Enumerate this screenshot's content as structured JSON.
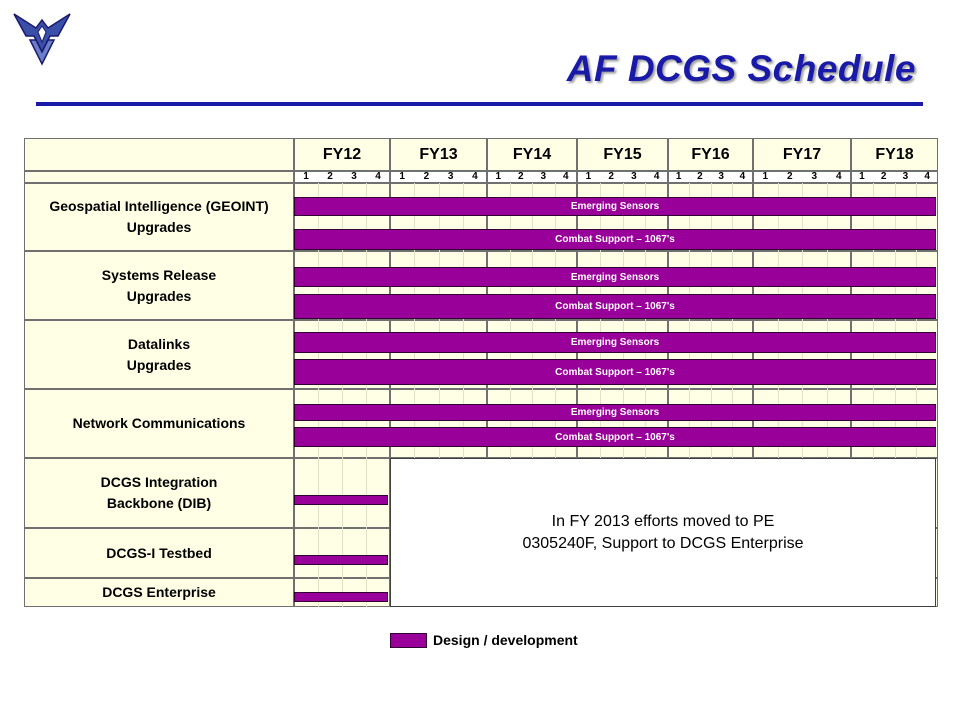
{
  "title": "AF DCGS Schedule",
  "colors": {
    "title": "#1a1aa8",
    "bar": "#990099",
    "cell_bg": "#ffffe6"
  },
  "logo": "air-force-wings-icon",
  "chart_data": {
    "type": "gantt",
    "fiscal_years": [
      "FY12",
      "FY13",
      "FY14",
      "FY15",
      "FY16",
      "FY17",
      "FY18"
    ],
    "quarters": [
      "1",
      "2",
      "3",
      "4"
    ],
    "rows": [
      {
        "label": "Geospatial Intelligence (GEOINT) Upgrades",
        "bars": [
          {
            "label": "Emerging Sensors",
            "start": "FY12 Q1",
            "end": "FY18 Q4"
          },
          {
            "label": "Combat Support – 1067's",
            "start": "FY12 Q1",
            "end": "FY18 Q4"
          }
        ]
      },
      {
        "label": "Systems Release Upgrades",
        "bars": [
          {
            "label": "Emerging Sensors",
            "start": "FY12 Q1",
            "end": "FY18 Q4"
          },
          {
            "label": "Combat Support – 1067's",
            "start": "FY12 Q1",
            "end": "FY18 Q4"
          }
        ]
      },
      {
        "label": "Datalinks Upgrades",
        "bars": [
          {
            "label": "Emerging Sensors",
            "start": "FY12 Q1",
            "end": "FY18 Q4"
          },
          {
            "label": "Combat Support – 1067's",
            "start": "FY12 Q1",
            "end": "FY18 Q4"
          }
        ]
      },
      {
        "label": "Network Communications",
        "bars": [
          {
            "label": "Emerging Sensors",
            "start": "FY12 Q1",
            "end": "FY18 Q4"
          },
          {
            "label": "Combat Support – 1067's",
            "start": "FY12 Q1",
            "end": "FY18 Q4"
          }
        ]
      },
      {
        "label": "DCGS Integration Backbone (DIB)",
        "bars": [
          {
            "label": "",
            "start": "FY12 Q1",
            "end": "FY12 Q4"
          }
        ]
      },
      {
        "label": "DCGS-I Testbed",
        "bars": [
          {
            "label": "",
            "start": "FY12 Q1",
            "end": "FY12 Q4"
          }
        ]
      },
      {
        "label": "DCGS Enterprise",
        "bars": [
          {
            "label": "",
            "start": "FY12 Q1",
            "end": "FY12 Q4"
          }
        ]
      }
    ],
    "note": [
      "In FY 2013 efforts moved to PE",
      "0305240F, Support to DCGS Enterprise"
    ],
    "legend": [
      {
        "label": "Design / development",
        "color": "#990099"
      }
    ]
  }
}
